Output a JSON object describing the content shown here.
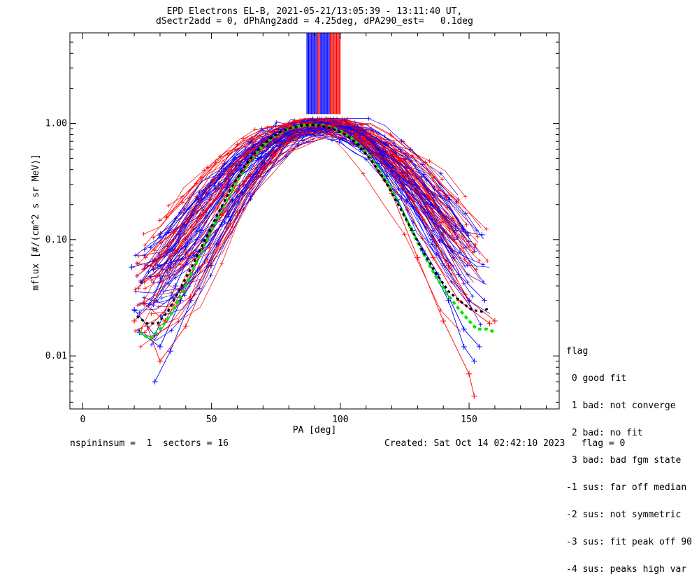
{
  "header": {
    "title_line1": "EPD Electrons EL-B, 2021-05-21/13:05:39 - 13:11:40 UT,",
    "title_line2": "dSectr2add = 0, dPhAng2add = 4.25deg, dPA290_est=   0.1deg"
  },
  "footer": {
    "left": "nspininsum =  1  sectors = 16",
    "right": "Created: Sat Oct 14 02:42:10 2023   flag = 0"
  },
  "flag_legend": {
    "title": "flag",
    "items": [
      " 0 good fit",
      " 1 bad: not converge",
      " 2 bad: no fit",
      " 3 bad: bad fgm state",
      "-1 sus: far off median",
      "-2 sus: not symmetric",
      "-3 sus: fit peak off 90",
      "-4 sus: peaks high var"
    ]
  },
  "chart_data": {
    "type": "line",
    "xlabel": "PA [deg]",
    "ylabel": "mflux [#/(cm^2 s sr MeV)]",
    "xlim": [
      -5,
      185
    ],
    "ylim": [
      0.0035,
      6.0
    ],
    "yscale": "log",
    "x_ticks": [
      0,
      50,
      100,
      150
    ],
    "x_tick_labels": [
      "0",
      "50",
      "100",
      "150"
    ],
    "y_ticks": [
      0.01,
      0.1,
      1.0
    ],
    "y_tick_labels": [
      "0.01",
      "0.10",
      "1.00"
    ],
    "colors": {
      "red_series": "#ff0000",
      "blue_series": "#0000ff",
      "fit_green": "#00e600",
      "fit_black": "#000000"
    },
    "series": [
      {
        "color": "#0000ff",
        "values_x": [
          19,
          27,
          35,
          45,
          55,
          65,
          75,
          85,
          95,
          105,
          115,
          125,
          135,
          145,
          155
        ],
        "values_y": [
          0.058,
          0.065,
          0.08,
          0.22,
          0.45,
          0.7,
          0.95,
          1.02,
          1.04,
          0.85,
          0.55,
          0.3,
          0.2,
          0.12,
          0.11
        ]
      },
      {
        "color": "#ff0000",
        "values_x": [
          20,
          28,
          36,
          46,
          56,
          66,
          76,
          86,
          96,
          106,
          116,
          126,
          136,
          146,
          158
        ],
        "values_y": [
          0.02,
          0.03,
          0.08,
          0.16,
          0.3,
          0.6,
          0.88,
          1.05,
          1.02,
          0.8,
          0.45,
          0.18,
          0.07,
          0.03,
          0.019
        ]
      },
      {
        "color": "#0000ff",
        "values_x": [
          22,
          30,
          38,
          48,
          58,
          68,
          78,
          88,
          98,
          108,
          118,
          128,
          138,
          148,
          154
        ],
        "values_y": [
          0.016,
          0.012,
          0.03,
          0.1,
          0.22,
          0.5,
          0.8,
          0.95,
          0.98,
          0.7,
          0.35,
          0.12,
          0.05,
          0.017,
          0.012
        ]
      },
      {
        "color": "#ff0000",
        "values_x": [
          25,
          30,
          40,
          50,
          60,
          70,
          80,
          90,
          100,
          110,
          120,
          130,
          140,
          150,
          152
        ],
        "values_y": [
          0.018,
          0.009,
          0.018,
          0.06,
          0.16,
          0.4,
          0.75,
          0.92,
          0.9,
          0.6,
          0.25,
          0.07,
          0.02,
          0.007,
          0.0045
        ]
      },
      {
        "color": "#0000ff",
        "values_x": [
          20,
          28,
          36,
          46,
          56,
          66,
          76,
          86,
          96,
          106,
          116,
          126,
          136,
          146,
          156
        ],
        "values_y": [
          0.025,
          0.015,
          0.04,
          0.12,
          0.28,
          0.55,
          0.85,
          1.0,
          0.95,
          0.75,
          0.45,
          0.22,
          0.1,
          0.05,
          0.03
        ]
      },
      {
        "color": "#ff0000",
        "values_x": [
          24,
          32,
          42,
          52,
          62,
          72,
          82,
          92,
          102,
          112,
          122,
          132,
          142,
          150,
          160
        ],
        "values_y": [
          0.028,
          0.02,
          0.05,
          0.15,
          0.38,
          0.7,
          0.95,
          1.0,
          0.95,
          0.7,
          0.35,
          0.15,
          0.06,
          0.03,
          0.02
        ]
      },
      {
        "color": "#0000ff",
        "values_x": [
          28,
          34,
          42,
          52,
          62,
          72,
          82,
          92,
          102,
          112,
          122,
          132,
          142,
          148,
          152
        ],
        "values_y": [
          0.006,
          0.011,
          0.03,
          0.09,
          0.25,
          0.55,
          0.85,
          1.03,
          0.9,
          0.55,
          0.22,
          0.08,
          0.03,
          0.012,
          0.009
        ]
      }
    ],
    "fit_curves": [
      {
        "name": "",
        "color": "#00e600",
        "style": "dashed",
        "x": [
          22,
          26,
          30,
          35,
          40,
          45,
          50,
          55,
          60,
          65,
          70,
          75,
          80,
          85,
          90,
          93,
          97,
          100,
          105,
          110,
          115,
          120,
          125,
          130,
          135,
          140,
          145,
          150,
          153,
          157,
          160
        ],
        "y": [
          0.016,
          0.014,
          0.017,
          0.024,
          0.04,
          0.07,
          0.12,
          0.2,
          0.32,
          0.48,
          0.64,
          0.79,
          0.9,
          0.96,
          0.97,
          0.96,
          0.92,
          0.86,
          0.73,
          0.57,
          0.41,
          0.27,
          0.16,
          0.095,
          0.058,
          0.038,
          0.027,
          0.02,
          0.017,
          0.017,
          0.016
        ]
      },
      {
        "name": "",
        "color": "#000000",
        "style": "dashed",
        "x": [
          21,
          25,
          29,
          33,
          37,
          42,
          47,
          52,
          57,
          62,
          67,
          72,
          77,
          82,
          87,
          92,
          97,
          102,
          107,
          112,
          117,
          122,
          127,
          132,
          137,
          142,
          147,
          151,
          155,
          158
        ],
        "y": [
          0.022,
          0.019,
          0.019,
          0.024,
          0.035,
          0.057,
          0.095,
          0.16,
          0.26,
          0.4,
          0.56,
          0.72,
          0.85,
          0.93,
          0.97,
          0.96,
          0.9,
          0.8,
          0.65,
          0.48,
          0.33,
          0.21,
          0.13,
          0.08,
          0.052,
          0.036,
          0.029,
          0.025,
          0.024,
          0.026
        ]
      }
    ],
    "bars_at_top": {
      "x_range": [
        87,
        100
      ],
      "y_range": [
        1.2,
        6.0
      ],
      "colors": [
        "#0000ff",
        "#ff0000"
      ]
    }
  }
}
